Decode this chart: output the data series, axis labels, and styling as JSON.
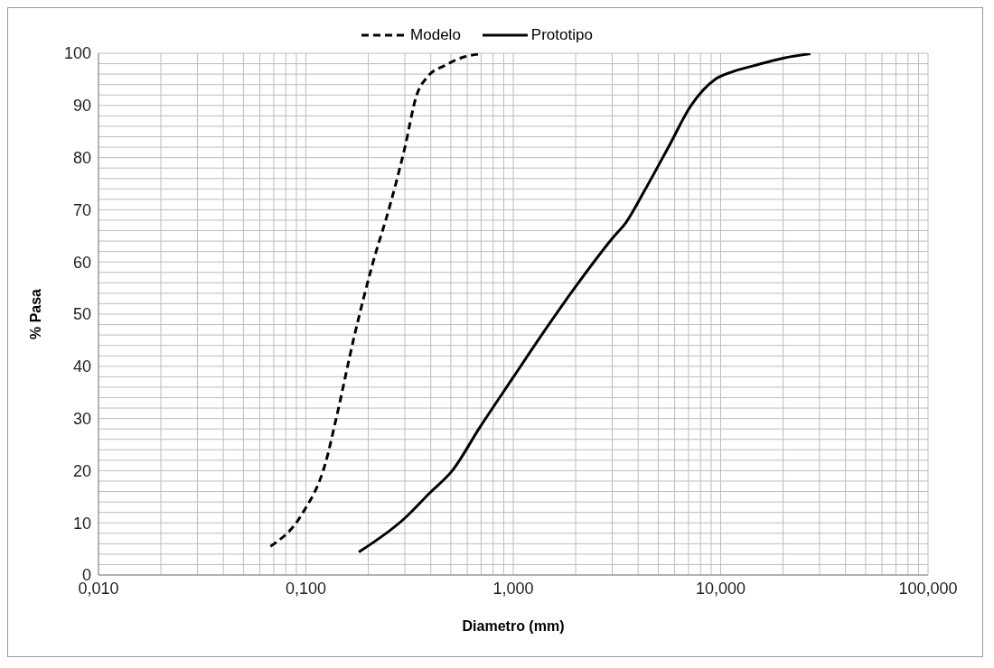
{
  "chart_data": {
    "type": "line",
    "xlabel": "Diametro (mm)",
    "ylabel": "% Pasa",
    "log": "x",
    "grid": true,
    "legend": "top",
    "marker": "none",
    "xlim": [
      0.01,
      100
    ],
    "xticks": [
      {
        "value": 0.01,
        "label": "0,010"
      },
      {
        "value": 0.02,
        "label": null
      },
      {
        "value": 0.03,
        "label": null
      },
      {
        "value": 0.04,
        "label": null
      },
      {
        "value": 0.05,
        "label": null
      },
      {
        "value": 0.06,
        "label": null
      },
      {
        "value": 0.07,
        "label": null
      },
      {
        "value": 0.08,
        "label": null
      },
      {
        "value": 0.09,
        "label": null
      },
      {
        "value": 0.1,
        "label": "0,100"
      },
      {
        "value": 0.2,
        "label": null
      },
      {
        "value": 0.3,
        "label": null
      },
      {
        "value": 0.4,
        "label": null
      },
      {
        "value": 0.5,
        "label": null
      },
      {
        "value": 0.6,
        "label": null
      },
      {
        "value": 0.7,
        "label": null
      },
      {
        "value": 0.8,
        "label": null
      },
      {
        "value": 0.9,
        "label": null
      },
      {
        "value": 1,
        "label": "1,000"
      },
      {
        "value": 2,
        "label": null
      },
      {
        "value": 3,
        "label": null
      },
      {
        "value": 4,
        "label": null
      },
      {
        "value": 5,
        "label": null
      },
      {
        "value": 6,
        "label": null
      },
      {
        "value": 7,
        "label": null
      },
      {
        "value": 8,
        "label": null
      },
      {
        "value": 9,
        "label": null
      },
      {
        "value": 10,
        "label": "10,000"
      },
      {
        "value": 20,
        "label": null
      },
      {
        "value": 30,
        "label": null
      },
      {
        "value": 40,
        "label": null
      },
      {
        "value": 50,
        "label": null
      },
      {
        "value": 60,
        "label": null
      },
      {
        "value": 70,
        "label": null
      },
      {
        "value": 80,
        "label": null
      },
      {
        "value": 90,
        "label": null
      },
      {
        "value": 100,
        "label": "100,000"
      }
    ],
    "ylim": [
      0,
      100
    ],
    "yticks": [
      0,
      {
        "value": 2,
        "label": null
      },
      {
        "value": 4,
        "label": null
      },
      {
        "value": 6,
        "label": null
      },
      {
        "value": 8,
        "label": null
      },
      10,
      {
        "value": 12,
        "label": null
      },
      {
        "value": 14,
        "label": null
      },
      {
        "value": 16,
        "label": null
      },
      {
        "value": 18,
        "label": null
      },
      20,
      {
        "value": 22,
        "label": null
      },
      {
        "value": 24,
        "label": null
      },
      {
        "value": 26,
        "label": null
      },
      {
        "value": 28,
        "label": null
      },
      30,
      {
        "value": 32,
        "label": null
      },
      {
        "value": 34,
        "label": null
      },
      {
        "value": 36,
        "label": null
      },
      {
        "value": 38,
        "label": null
      },
      40,
      {
        "value": 42,
        "label": null
      },
      {
        "value": 44,
        "label": null
      },
      {
        "value": 46,
        "label": null
      },
      {
        "value": 48,
        "label": null
      },
      50,
      {
        "value": 52,
        "label": null
      },
      {
        "value": 54,
        "label": null
      },
      {
        "value": 56,
        "label": null
      },
      {
        "value": 58,
        "label": null
      },
      60,
      {
        "value": 62,
        "label": null
      },
      {
        "value": 64,
        "label": null
      },
      {
        "value": 66,
        "label": null
      },
      {
        "value": 68,
        "label": null
      },
      70,
      {
        "value": 72,
        "label": null
      },
      {
        "value": 74,
        "label": null
      },
      {
        "value": 76,
        "label": null
      },
      {
        "value": 78,
        "label": null
      },
      80,
      {
        "value": 82,
        "label": null
      },
      {
        "value": 84,
        "label": null
      },
      {
        "value": 86,
        "label": null
      },
      {
        "value": 88,
        "label": null
      },
      90,
      {
        "value": 92,
        "label": null
      },
      {
        "value": 94,
        "label": null
      },
      {
        "value": 96,
        "label": null
      },
      {
        "value": 98,
        "label": null
      },
      100
    ],
    "series": [
      {
        "name": "Modelo",
        "color": "#000000",
        "line_style": "dashed",
        "x": [
          0.0675,
          0.0955,
          0.125,
          0.14,
          0.171,
          0.209,
          0.255,
          0.3,
          0.341,
          0.388,
          0.465,
          0.58,
          0.71
        ],
        "values": [
          5.5,
          11.6,
          21.8,
          30,
          45.7,
          59.4,
          71,
          81.9,
          91.8,
          95.6,
          97.6,
          99.3,
          99.9
        ]
      },
      {
        "name": "Prototipo",
        "color": "#000000",
        "line_style": "solid",
        "x": [
          0.18,
          0.3,
          0.395,
          0.51,
          0.69,
          1,
          1.37,
          2,
          3,
          3.5,
          4.3,
          5.6,
          7.2,
          9.4,
          11.3,
          14.4,
          20.2,
          27.1
        ],
        "values": [
          4.4,
          10.9,
          15.7,
          20.1,
          28.3,
          37.9,
          46,
          55.3,
          64.5,
          67.6,
          73.7,
          82,
          90,
          95,
          96.4,
          97.6,
          99.1,
          99.9
        ]
      }
    ]
  }
}
